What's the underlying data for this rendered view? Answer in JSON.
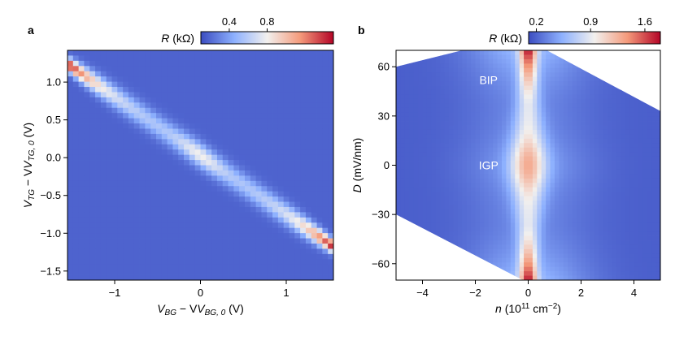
{
  "colors": {
    "map_low": "#3b4cc0",
    "map_mid": "#f2f0ee",
    "map_high": "#b40426",
    "frame": "#000000",
    "annotation": "#ffffff"
  },
  "chart_data": [
    {
      "type": "heatmap",
      "panel_label": "a",
      "xlabel": {
        "main": "V",
        "sub1": "BG",
        "mid": " − V",
        "sub2": "BG, 0",
        "unit": " (V)"
      },
      "ylabel": {
        "main": "V",
        "sub1": "TG",
        "mid": " − V",
        "sub2": "TG, 0",
        "unit": " (V)"
      },
      "xlim": [
        -1.55,
        1.55
      ],
      "ylim": [
        -1.62,
        1.42
      ],
      "xticks": [
        -1,
        0,
        1
      ],
      "xtick_labels": [
        "−1",
        "0",
        "1"
      ],
      "yticks": [
        1.0,
        0.5,
        0.0,
        -0.5,
        -1.0,
        -1.5
      ],
      "ytick_labels": [
        "1.0",
        "0.5",
        "0.0",
        "−0.5",
        "−1.0",
        "−1.5"
      ],
      "colorbar": {
        "label": "R (kΩ)",
        "label_var": "R",
        "label_unit": " (kΩ)",
        "range": [
          0.1,
          1.5
        ],
        "ticks": [
          0.4,
          0.8
        ],
        "tick_labels": [
          "0.4",
          "0.8"
        ]
      },
      "ridge": {
        "slope": -0.78,
        "intercept": 0.03
      },
      "values": {
        "background": 0.18,
        "ridge_center": 0.85,
        "ridge_ends": 1.5,
        "ridge_width_V": 0.06
      }
    },
    {
      "type": "heatmap",
      "panel_label": "b",
      "xlabel": {
        "main": "n",
        "unit": " (10",
        "exp": "11",
        "unit2": " cm",
        "exp2": "−2",
        "close": ")"
      },
      "ylabel": {
        "main": "D",
        "unit": " (mV/nm)"
      },
      "xlim": [
        -5,
        5
      ],
      "ylim": [
        -70,
        70
      ],
      "xticks": [
        -4,
        -2,
        0,
        2,
        4
      ],
      "xtick_labels": [
        "−4",
        "−2",
        "0",
        "2",
        "4"
      ],
      "yticks": [
        60,
        30,
        0,
        -30,
        -60
      ],
      "ytick_labels": [
        "60",
        "30",
        "0",
        "−30",
        "−60"
      ],
      "colorbar": {
        "label": "R (kΩ)",
        "label_var": "R",
        "label_unit": " (kΩ)",
        "range": [
          0.1,
          1.8
        ],
        "ticks": [
          0.2,
          0.9,
          1.6
        ],
        "tick_labels": [
          "0.2",
          "0.9",
          "1.6"
        ]
      },
      "valid_region": {
        "top_left_n": -5.0,
        "top_left_D": 60,
        "top_n_range": [
          -2.5,
          0.7
        ],
        "right_top_D": 33,
        "right_bottom_n": 2.6,
        "left_bottom_D": -30,
        "bottom_n_range": [
          -0.2,
          2.6
        ]
      },
      "values": {
        "background": 0.18,
        "peak_at_D0": 1.3,
        "peak_at_D70": 1.8,
        "peak_at_D35": 0.9
      },
      "annotations": [
        {
          "text": "BIP",
          "n": -1.5,
          "D": 52
        },
        {
          "text": "IGP",
          "n": -1.5,
          "D": 0
        }
      ]
    }
  ]
}
